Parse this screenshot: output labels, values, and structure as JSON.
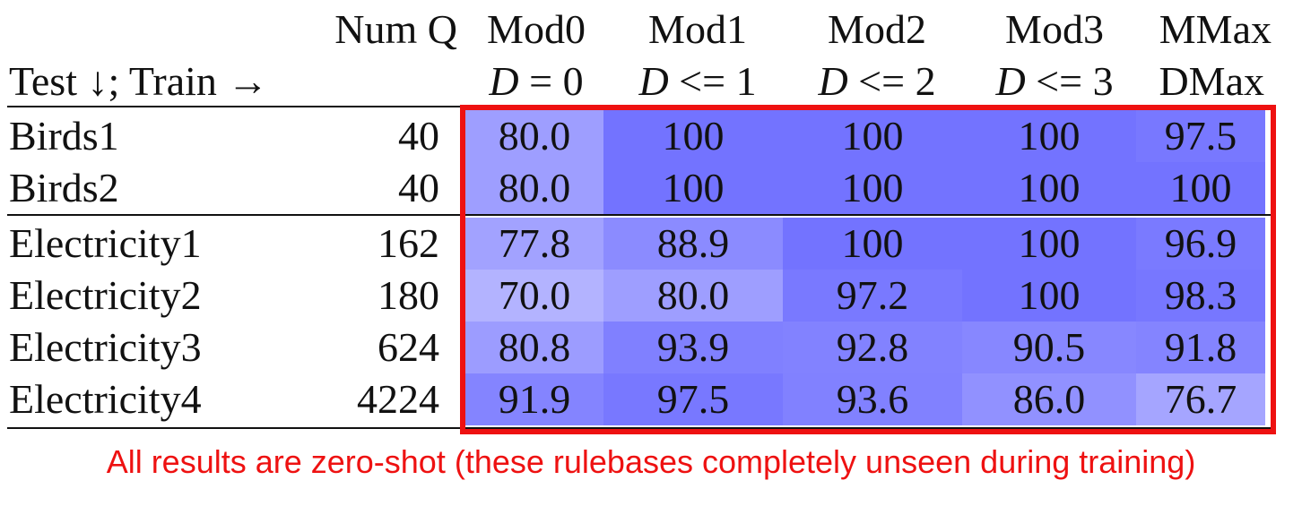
{
  "chart_data": {
    "type": "table",
    "header_row1": [
      "",
      "Num Q",
      "Mod0",
      "Mod1",
      "Mod2",
      "Mod3",
      "MMax"
    ],
    "header_row2_label": "Test ↓; Train →",
    "header_row2": [
      {
        "var": "D",
        "op": " = ",
        "num": "0"
      },
      {
        "var": "D",
        "op": " <= ",
        "num": "1"
      },
      {
        "var": "D",
        "op": " <= ",
        "num": "2"
      },
      {
        "var": "D",
        "op": " <= ",
        "num": "3"
      },
      {
        "var": "",
        "op": "",
        "num": "DMax"
      }
    ],
    "rows": [
      {
        "name": "Birds1",
        "num_q": "40",
        "values": [
          "80.0",
          "100",
          "100",
          "100",
          "97.5"
        ]
      },
      {
        "name": "Birds2",
        "num_q": "40",
        "values": [
          "80.0",
          "100",
          "100",
          "100",
          "100"
        ]
      },
      {
        "name": "Electricity1",
        "num_q": "162",
        "values": [
          "77.8",
          "88.9",
          "100",
          "100",
          "96.9"
        ]
      },
      {
        "name": "Electricity2",
        "num_q": "180",
        "values": [
          "70.0",
          "80.0",
          "97.2",
          "100",
          "98.3"
        ]
      },
      {
        "name": "Electricity3",
        "num_q": "624",
        "values": [
          "80.8",
          "93.9",
          "92.8",
          "90.5",
          "91.8"
        ]
      },
      {
        "name": "Electricity4",
        "num_q": "4224",
        "values": [
          "91.9",
          "97.5",
          "93.6",
          "86.0",
          "76.7"
        ]
      }
    ],
    "heatmap": {
      "low_color": "#b3b3ff",
      "high_color": "#7373ff",
      "min_value": 70.0,
      "max_value": 100.0
    },
    "highlight_color": "#ee1111"
  },
  "footnote": "All results are zero-shot (these rulebases completely unseen during training)"
}
